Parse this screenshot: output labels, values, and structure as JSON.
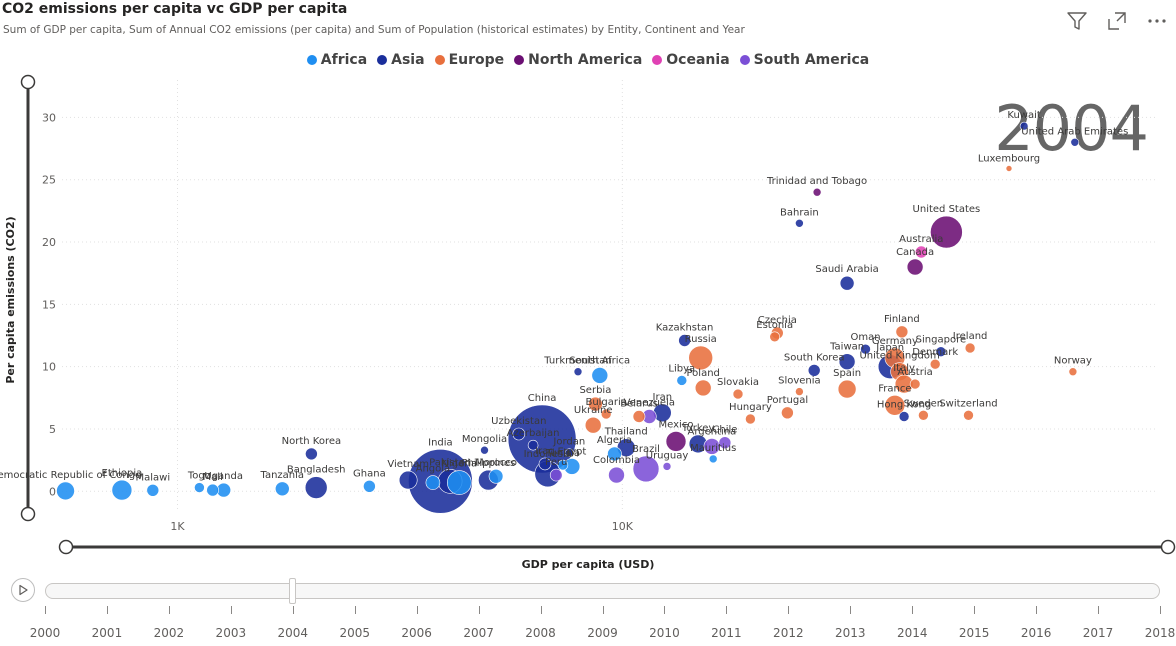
{
  "header": {
    "title": "CO2 emissions per capita vc GDP per capita",
    "subtitle": "Sum of GDP per capita, Sum of Annual CO2 emissions (per capita) and Sum of Population (historical estimates) by Entity, Continent and Year"
  },
  "toolbar": {
    "icons": [
      "filter-icon",
      "focus-mode-icon",
      "more-options-icon"
    ]
  },
  "legend": [
    {
      "label": "Africa",
      "color": "#1f8ef1"
    },
    {
      "label": "Asia",
      "color": "#1a2e9b"
    },
    {
      "label": "Europe",
      "color": "#e86f3d"
    },
    {
      "label": "North America",
      "color": "#6b0f73"
    },
    {
      "label": "Oceania",
      "color": "#e041b4"
    },
    {
      "label": "South America",
      "color": "#7b4fd6"
    }
  ],
  "play_axis": {
    "current_year": "2004",
    "years": [
      "2000",
      "2001",
      "2002",
      "2003",
      "2004",
      "2005",
      "2006",
      "2007",
      "2008",
      "2009",
      "2010",
      "2011",
      "2012",
      "2013",
      "2014",
      "2015",
      "2016",
      "2017",
      "2018"
    ]
  },
  "chart_data": {
    "type": "scatter",
    "title": "CO2 emissions per capita vc GDP per capita",
    "xlabel": "GDP per capita (USD)",
    "ylabel": "Per capita emissions (CO2)",
    "x_scale": "log",
    "xlim": [
      550,
      160000
    ],
    "ylim": [
      -1.5,
      33
    ],
    "x_ticks": [
      {
        "value": 1000,
        "label": "1K"
      },
      {
        "value": 10000,
        "label": "10K"
      }
    ],
    "y_ticks": [
      0,
      5,
      10,
      15,
      20,
      25,
      30
    ],
    "grid": true,
    "legend_position": "top-center",
    "points": [
      {
        "label": "Democratic Republic of Congo",
        "c": "Africa",
        "x": 560,
        "y": 0.03,
        "s": 9
      },
      {
        "label": "Ethiopia",
        "c": "Africa",
        "x": 750,
        "y": 0.1,
        "s": 10
      },
      {
        "label": "Malawi",
        "c": "Africa",
        "x": 880,
        "y": 0.08,
        "s": 6
      },
      {
        "label": "Togo",
        "c": "Africa",
        "x": 1120,
        "y": 0.3,
        "s": 5
      },
      {
        "label": "Uganda",
        "c": "Africa",
        "x": 1270,
        "y": 0.1,
        "s": 7
      },
      {
        "label": "Mali",
        "c": "Africa",
        "x": 1200,
        "y": 0.1,
        "s": 6
      },
      {
        "label": "Tanzania",
        "c": "Africa",
        "x": 1720,
        "y": 0.2,
        "s": 7
      },
      {
        "label": "Bangladesh",
        "c": "Asia",
        "x": 2050,
        "y": 0.3,
        "s": 11
      },
      {
        "label": "North Korea",
        "c": "Asia",
        "x": 2000,
        "y": 3.0,
        "s": 6
      },
      {
        "label": "Ghana",
        "c": "Africa",
        "x": 2700,
        "y": 0.4,
        "s": 6
      },
      {
        "label": "Vietnam",
        "c": "Asia",
        "x": 3300,
        "y": 0.9,
        "s": 9
      },
      {
        "label": "India",
        "c": "Asia",
        "x": 3900,
        "y": 0.8,
        "s": 32
      },
      {
        "label": "Angola",
        "c": "Africa",
        "x": 3750,
        "y": 0.7,
        "s": 7
      },
      {
        "label": "Pakistan",
        "c": "Asia",
        "x": 4100,
        "y": 0.8,
        "s": 12
      },
      {
        "label": "Nigeria",
        "c": "Africa",
        "x": 4300,
        "y": 0.7,
        "s": 12
      },
      {
        "label": "Mongolia",
        "c": "Asia",
        "x": 4900,
        "y": 3.3,
        "s": 4
      },
      {
        "label": "Philippines",
        "c": "Asia",
        "x": 5000,
        "y": 0.9,
        "s": 10
      },
      {
        "label": "Morocco",
        "c": "Africa",
        "x": 5200,
        "y": 1.2,
        "s": 7
      },
      {
        "label": "Uzbekistan",
        "c": "Asia",
        "x": 5850,
        "y": 4.6,
        "s": 6
      },
      {
        "label": "Azerbaijan",
        "c": "Asia",
        "x": 6300,
        "y": 3.7,
        "s": 5
      },
      {
        "label": "China",
        "c": "Asia",
        "x": 6600,
        "y": 4.2,
        "s": 34
      },
      {
        "label": "Iraq",
        "c": "Asia",
        "x": 6700,
        "y": 2.2,
        "s": 6
      },
      {
        "label": "Indonesia",
        "c": "Asia",
        "x": 6800,
        "y": 1.4,
        "s": 13
      },
      {
        "label": "Peru",
        "c": "South America",
        "x": 7100,
        "y": 1.3,
        "s": 6
      },
      {
        "label": "Tunisia",
        "c": "Africa",
        "x": 7350,
        "y": 2.1,
        "s": 5
      },
      {
        "label": "Jordan",
        "c": "Asia",
        "x": 7600,
        "y": 3.1,
        "s": 4
      },
      {
        "label": "Egypt",
        "c": "Africa",
        "x": 7700,
        "y": 2.0,
        "s": 8
      },
      {
        "label": "Turkmenistan",
        "c": "Asia",
        "x": 7950,
        "y": 9.6,
        "s": 4
      },
      {
        "label": "Serbia",
        "c": "Europe",
        "x": 8700,
        "y": 7.0,
        "s": 7
      },
      {
        "label": "South Africa",
        "c": "Africa",
        "x": 8900,
        "y": 9.3,
        "s": 8
      },
      {
        "label": "Ukraine",
        "c": "Europe",
        "x": 8600,
        "y": 5.3,
        "s": 8
      },
      {
        "label": "Bulgaria",
        "c": "Europe",
        "x": 9200,
        "y": 6.2,
        "s": 5
      },
      {
        "label": "Algeria",
        "c": "Africa",
        "x": 9600,
        "y": 3.0,
        "s": 7
      },
      {
        "label": "Colombia",
        "c": "South America",
        "x": 9700,
        "y": 1.3,
        "s": 8
      },
      {
        "label": "Thailand",
        "c": "Asia",
        "x": 10200,
        "y": 3.5,
        "s": 9
      },
      {
        "label": "Belarus",
        "c": "Europe",
        "x": 10900,
        "y": 6.0,
        "s": 6
      },
      {
        "label": "Brazil",
        "c": "South America",
        "x": 11300,
        "y": 1.8,
        "s": 13
      },
      {
        "label": "Venezuela",
        "c": "South America",
        "x": 11500,
        "y": 6.0,
        "s": 7
      },
      {
        "label": "Iran",
        "c": "Asia",
        "x": 12300,
        "y": 6.3,
        "s": 9
      },
      {
        "label": "Mexico",
        "c": "North America",
        "x": 13200,
        "y": 4.0,
        "s": 10
      },
      {
        "label": "Uruguay",
        "c": "South America",
        "x": 12600,
        "y": 2.0,
        "s": 4
      },
      {
        "label": "Libya",
        "c": "Africa",
        "x": 13600,
        "y": 8.9,
        "s": 5
      },
      {
        "label": "Kazakhstan",
        "c": "Asia",
        "x": 13800,
        "y": 12.1,
        "s": 6
      },
      {
        "label": "Russia",
        "c": "Europe",
        "x": 15000,
        "y": 10.7,
        "s": 12
      },
      {
        "label": "Poland",
        "c": "Europe",
        "x": 15200,
        "y": 8.3,
        "s": 8
      },
      {
        "label": "Turkey",
        "c": "Asia",
        "x": 14800,
        "y": 3.8,
        "s": 9
      },
      {
        "label": "Argentina",
        "c": "South America",
        "x": 15900,
        "y": 3.6,
        "s": 8
      },
      {
        "label": "Mauritius",
        "c": "Africa",
        "x": 16000,
        "y": 2.6,
        "s": 4
      },
      {
        "label": "Chile",
        "c": "South America",
        "x": 17000,
        "y": 3.9,
        "s": 6
      },
      {
        "label": "Slovakia",
        "c": "Europe",
        "x": 18200,
        "y": 7.8,
        "s": 5
      },
      {
        "label": "Hungary",
        "c": "Europe",
        "x": 19400,
        "y": 5.8,
        "s": 5
      },
      {
        "label": "Estonia",
        "c": "Europe",
        "x": 22000,
        "y": 12.4,
        "s": 5
      },
      {
        "label": "Czechia",
        "c": "Europe",
        "x": 22300,
        "y": 12.7,
        "s": 6
      },
      {
        "label": "Portugal",
        "c": "Europe",
        "x": 23500,
        "y": 6.3,
        "s": 6
      },
      {
        "label": "Slovenia",
        "c": "Europe",
        "x": 25000,
        "y": 8.0,
        "s": 4
      },
      {
        "label": "South Korea",
        "c": "Asia",
        "x": 27000,
        "y": 9.7,
        "s": 6
      },
      {
        "label": "Trinidad and Tobago",
        "c": "North America",
        "x": 27400,
        "y": 24.0,
        "s": 4
      },
      {
        "label": "Bahrain",
        "c": "Asia",
        "x": 25000,
        "y": 21.5,
        "s": 4
      },
      {
        "label": "Saudi Arabia",
        "c": "Asia",
        "x": 32000,
        "y": 16.7,
        "s": 7
      },
      {
        "label": "Taiwan",
        "c": "Asia",
        "x": 32000,
        "y": 10.4,
        "s": 8
      },
      {
        "label": "Spain",
        "c": "Europe",
        "x": 32000,
        "y": 8.2,
        "s": 9
      },
      {
        "label": "Oman",
        "c": "Asia",
        "x": 35200,
        "y": 11.4,
        "s": 5
      },
      {
        "label": "Germany",
        "c": "Europe",
        "x": 41000,
        "y": 10.7,
        "s": 10
      },
      {
        "label": "Finland",
        "c": "Europe",
        "x": 42500,
        "y": 12.8,
        "s": 6
      },
      {
        "label": "France",
        "c": "Europe",
        "x": 41000,
        "y": 6.9,
        "s": 10
      },
      {
        "label": "Japan",
        "c": "Asia",
        "x": 40000,
        "y": 10.0,
        "s": 12
      },
      {
        "label": "United Kingdom",
        "c": "Europe",
        "x": 42000,
        "y": 9.6,
        "s": 9
      },
      {
        "label": "Italy",
        "c": "Europe",
        "x": 43000,
        "y": 8.6,
        "s": 9
      },
      {
        "label": "Hong Kong",
        "c": "Asia",
        "x": 43000,
        "y": 6.0,
        "s": 5
      },
      {
        "label": "Austria",
        "c": "Europe",
        "x": 45500,
        "y": 8.6,
        "s": 5
      },
      {
        "label": "Sweden",
        "c": "Europe",
        "x": 47500,
        "y": 6.1,
        "s": 5
      },
      {
        "label": "Canada",
        "c": "North America",
        "x": 45500,
        "y": 18.0,
        "s": 8
      },
      {
        "label": "Australia",
        "c": "Oceania",
        "x": 47000,
        "y": 19.2,
        "s": 6
      },
      {
        "label": "United States",
        "c": "North America",
        "x": 53500,
        "y": 20.8,
        "s": 16
      },
      {
        "label": "Denmark",
        "c": "Europe",
        "x": 50500,
        "y": 10.2,
        "s": 5
      },
      {
        "label": "Singapore",
        "c": "Asia",
        "x": 52000,
        "y": 11.2,
        "s": 5
      },
      {
        "label": "Ireland",
        "c": "Europe",
        "x": 60500,
        "y": 11.5,
        "s": 5
      },
      {
        "label": "Switzerland",
        "c": "Europe",
        "x": 60000,
        "y": 6.1,
        "s": 5
      },
      {
        "label": "Luxembourg",
        "c": "Europe",
        "x": 74000,
        "y": 25.9,
        "s": 3
      },
      {
        "label": "Kuwait",
        "c": "Asia",
        "x": 80000,
        "y": 29.3,
        "s": 4
      },
      {
        "label": "United Arab Emirates",
        "c": "Asia",
        "x": 104000,
        "y": 28.0,
        "s": 4
      },
      {
        "label": "Norway",
        "c": "Europe",
        "x": 103000,
        "y": 9.6,
        "s": 4
      }
    ]
  }
}
